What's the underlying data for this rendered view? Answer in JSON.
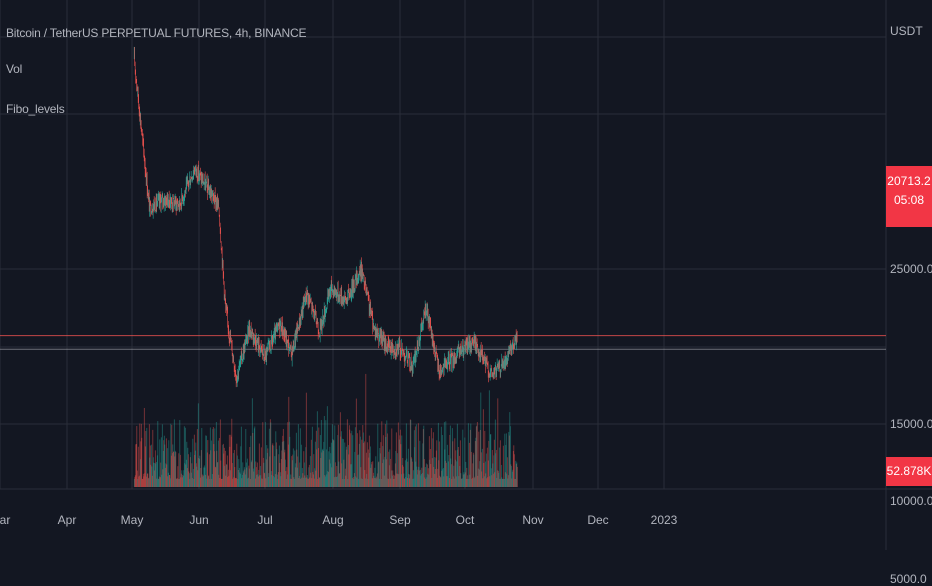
{
  "legend": {
    "title": "Bitcoin / TetherUS PERPETUAL FUTURES, 4h, BINANCE",
    "indicator_vol": "Vol",
    "indicator_fibo": "Fibo_levels"
  },
  "price_axis": {
    "unit": "USDT"
  },
  "last_price": {
    "value": "20713.2",
    "countdown": "05:08"
  },
  "last_volume": "52.878K",
  "colors": {
    "background": "#131722",
    "grid": "#2a2e39",
    "up": "#26a69a",
    "down": "#ef5350",
    "badge": "#f23645",
    "text": "#b2b5be"
  },
  "chart_data": {
    "type": "candlestick",
    "title": "Bitcoin / TetherUS PERPETUAL FUTURES, 4h, BINANCE",
    "interval": "4h",
    "y_unit": "USDT",
    "y_ticks": [
      5000,
      10000,
      15000,
      25000
    ],
    "y_tick_labels": [
      "5000.0",
      "10000.0",
      "15000.0",
      "25000.0"
    ],
    "x_ticks": [
      "Mar",
      "Apr",
      "May",
      "Jun",
      "Jul",
      "Aug",
      "Sep",
      "Oct",
      "Nov",
      "Dec",
      "2023"
    ],
    "horizontal_levels": [
      20713.2,
      19900
    ],
    "last_price": 20713.2,
    "last_volume": "52.878K",
    "price_path": [
      {
        "x": "2022-05-02",
        "y": 38600
      },
      {
        "x": "2022-05-09",
        "y": 29000
      },
      {
        "x": "2022-05-16",
        "y": 29500
      },
      {
        "x": "2022-05-23",
        "y": 29200
      },
      {
        "x": "2022-05-30",
        "y": 31500
      },
      {
        "x": "2022-06-06",
        "y": 30000
      },
      {
        "x": "2022-06-10",
        "y": 29000
      },
      {
        "x": "2022-06-13",
        "y": 22500
      },
      {
        "x": "2022-06-18",
        "y": 18000
      },
      {
        "x": "2022-06-24",
        "y": 21200
      },
      {
        "x": "2022-07-01",
        "y": 19300
      },
      {
        "x": "2022-07-08",
        "y": 21500
      },
      {
        "x": "2022-07-13",
        "y": 19500
      },
      {
        "x": "2022-07-20",
        "y": 23500
      },
      {
        "x": "2022-07-26",
        "y": 21000
      },
      {
        "x": "2022-07-31",
        "y": 23800
      },
      {
        "x": "2022-08-07",
        "y": 23000
      },
      {
        "x": "2022-08-14",
        "y": 25000
      },
      {
        "x": "2022-08-20",
        "y": 21200
      },
      {
        "x": "2022-08-26",
        "y": 20000
      },
      {
        "x": "2022-09-01",
        "y": 19900
      },
      {
        "x": "2022-09-07",
        "y": 18700
      },
      {
        "x": "2022-09-13",
        "y": 22500
      },
      {
        "x": "2022-09-19",
        "y": 18400
      },
      {
        "x": "2022-09-26",
        "y": 19300
      },
      {
        "x": "2022-10-05",
        "y": 20400
      },
      {
        "x": "2022-10-13",
        "y": 18200
      },
      {
        "x": "2022-10-20",
        "y": 19100
      },
      {
        "x": "2022-10-25",
        "y": 20713
      }
    ]
  }
}
